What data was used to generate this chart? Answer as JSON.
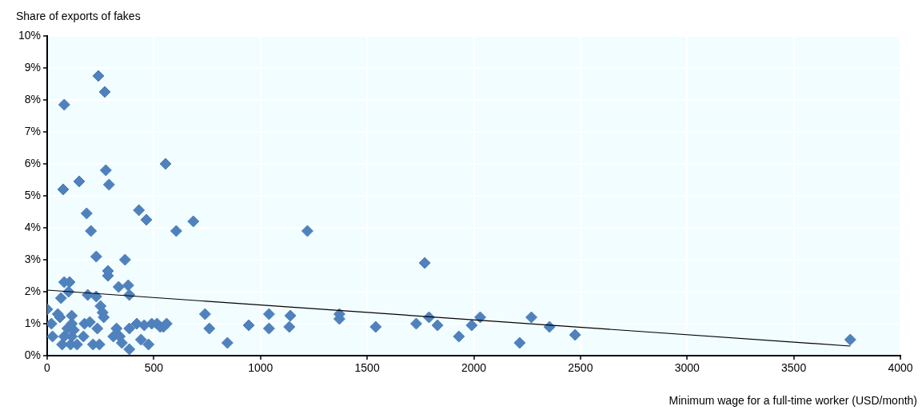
{
  "chart_data": {
    "type": "scatter",
    "xlabel": "Minimum wage for a full-time worker (USD/month)",
    "ylabel": "Share of exports of fakes",
    "grid": true,
    "legend": false,
    "line_style": "solid",
    "xlim": [
      0,
      4000
    ],
    "xticks": [
      0,
      500,
      1000,
      1500,
      2000,
      2500,
      3000,
      3500,
      4000
    ],
    "ylim": [
      0,
      10
    ],
    "yticks": [
      {
        "value": 0,
        "label": "0%"
      },
      {
        "value": 1,
        "label": "1%"
      },
      {
        "value": 2,
        "label": "2%"
      },
      {
        "value": 3,
        "label": "3%"
      },
      {
        "value": 4,
        "label": "4%"
      },
      {
        "value": 5,
        "label": "5%"
      },
      {
        "value": 6,
        "label": "6%"
      },
      {
        "value": 7,
        "label": "7%"
      },
      {
        "value": 8,
        "label": "8%"
      },
      {
        "value": 9,
        "label": "9%"
      },
      {
        "value": 10,
        "label": "10%"
      }
    ],
    "series": [
      {
        "marker": "diamond",
        "color": "#4f81bd",
        "x": [
          0,
          20,
          25,
          50,
          60,
          65,
          75,
          80,
          80,
          70,
          80,
          95,
          105,
          100,
          110,
          115,
          115,
          115,
          125,
          140,
          150,
          170,
          175,
          185,
          190,
          200,
          205,
          215,
          230,
          230,
          235,
          240,
          245,
          250,
          260,
          265,
          270,
          275,
          285,
          285,
          290,
          310,
          325,
          340,
          335,
          350,
          365,
          380,
          385,
          385,
          385,
          420,
          430,
          440,
          455,
          465,
          475,
          490,
          515,
          530,
          545,
          555,
          560,
          605,
          685,
          740,
          760,
          845,
          945,
          1040,
          1040,
          1140,
          1135,
          1220,
          1370,
          1370,
          1540,
          1730,
          1770,
          1790,
          1830,
          1930,
          1990,
          2030,
          2215,
          2270,
          2355,
          2475,
          3765
        ],
        "values": [
          1.45,
          1.0,
          0.6,
          1.3,
          1.2,
          1.8,
          5.2,
          7.85,
          2.3,
          0.35,
          0.6,
          0.85,
          2.3,
          2.0,
          0.35,
          1.25,
          1.0,
          0.6,
          0.8,
          0.35,
          5.45,
          0.6,
          1.0,
          4.45,
          1.9,
          1.05,
          3.9,
          0.35,
          1.85,
          3.1,
          0.85,
          8.75,
          0.35,
          1.55,
          1.35,
          1.2,
          8.25,
          5.8,
          2.5,
          2.65,
          5.35,
          0.6,
          0.85,
          0.6,
          2.15,
          0.4,
          3.0,
          2.2,
          1.9,
          0.85,
          0.2,
          1.0,
          4.55,
          0.5,
          0.95,
          4.25,
          0.35,
          1.0,
          1.0,
          0.9,
          0.9,
          6.0,
          1.0,
          3.9,
          4.2,
          1.3,
          0.85,
          0.4,
          0.95,
          1.3,
          0.85,
          1.25,
          0.9,
          3.9,
          1.3,
          1.15,
          0.9,
          1.0,
          2.9,
          1.2,
          0.95,
          0.6,
          0.95,
          1.2,
          0.4,
          1.2,
          0.9,
          0.65,
          0.5
        ]
      },
      {
        "type": "line",
        "marker": "none",
        "color": "#000000",
        "x": [
          0,
          3765
        ],
        "values": [
          2.05,
          0.3
        ]
      }
    ]
  }
}
